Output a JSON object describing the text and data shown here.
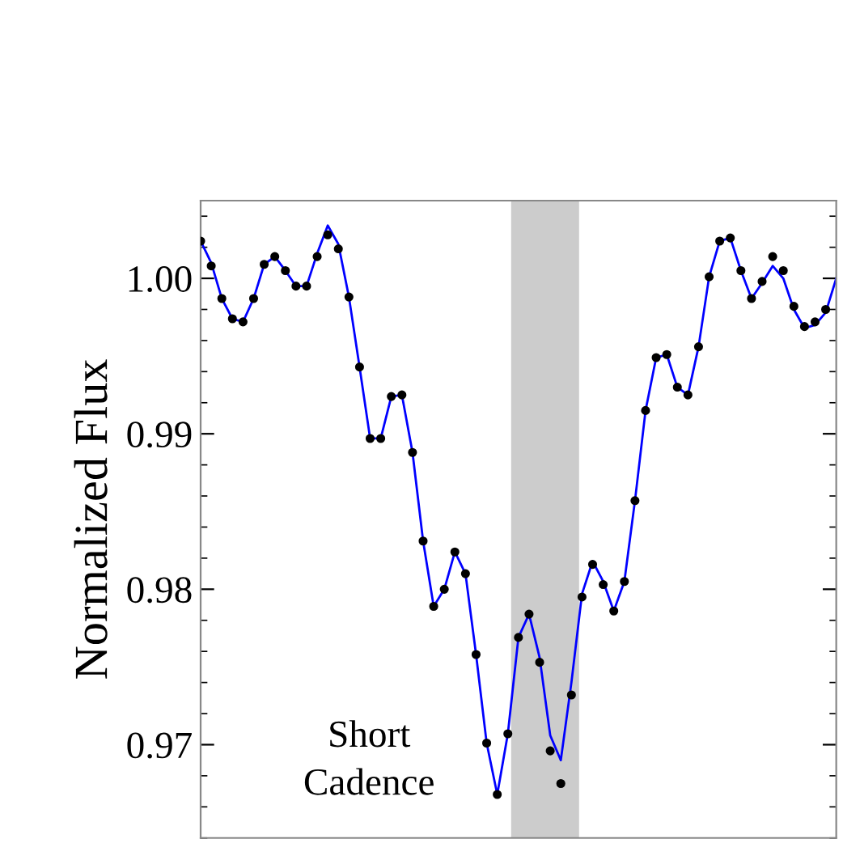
{
  "chart_data": {
    "type": "scatter",
    "ylabel": "Normalized Flux",
    "categories": [
      null,
      null,
      null,
      null,
      null,
      null,
      null,
      null,
      null,
      null,
      null,
      null,
      null,
      null,
      null,
      null,
      null,
      null,
      null,
      null,
      null,
      null,
      null,
      null,
      null,
      null,
      null,
      null,
      null,
      null,
      null,
      null,
      null,
      null,
      null,
      null,
      null,
      null,
      null,
      null,
      null,
      null,
      null,
      null,
      null,
      null,
      null,
      null,
      null,
      null,
      null,
      null,
      null,
      null,
      null,
      null,
      null,
      null,
      null,
      null,
      null
    ],
    "series": [
      {
        "type": "line",
        "color": "#0000ff",
        "marker": "none",
        "values": [
          1.0024,
          1.001,
          0.9987,
          0.9974,
          0.9972,
          0.9987,
          1.0009,
          1.0014,
          1.0005,
          0.9995,
          0.9995,
          1.0016,
          1.0034,
          1.0022,
          0.9988,
          0.9943,
          0.9897,
          0.9897,
          0.9924,
          0.9925,
          0.9888,
          0.9831,
          0.9789,
          0.98,
          0.9824,
          0.981,
          0.9758,
          0.9701,
          0.9668,
          0.9707,
          0.9769,
          0.9784,
          0.9756,
          0.9706,
          0.969,
          0.974,
          0.9797,
          0.9818,
          0.9805,
          0.9786,
          0.9805,
          0.9857,
          0.9915,
          0.9949,
          0.9951,
          0.993,
          0.9925,
          0.9956,
          1.0001,
          1.0024,
          1.0026,
          1.0005,
          0.9987,
          0.9997,
          1.0008,
          1.0,
          0.998,
          0.9968,
          0.997,
          0.9978,
          1.0
        ]
      },
      {
        "color": "#000000",
        "marker": "circle",
        "values": [
          1.0024,
          1.0008,
          0.9987,
          0.9974,
          0.9972,
          0.9987,
          1.0009,
          1.0014,
          1.0005,
          0.9995,
          0.9995,
          1.0014,
          1.0028,
          1.0019,
          0.9988,
          0.9943,
          0.9897,
          0.9897,
          0.9924,
          0.9925,
          0.9888,
          0.9831,
          0.9789,
          0.98,
          0.9824,
          0.981,
          0.9758,
          0.9701,
          0.9668,
          0.9707,
          0.9769,
          0.9784,
          0.9753,
          0.9696,
          0.9675,
          0.9732,
          0.9795,
          0.9816,
          0.9803,
          0.9786,
          0.9805,
          0.9857,
          0.9915,
          0.9949,
          0.9951,
          0.993,
          0.9925,
          0.9956,
          1.0001,
          1.0024,
          1.0026,
          1.0005,
          0.9987,
          0.9998,
          1.0014,
          1.0005,
          0.9982,
          0.9969,
          0.9972,
          0.998,
          null
        ]
      }
    ],
    "ylim": [
      0.964,
      1.005
    ],
    "yticks": [
      0.97,
      0.98,
      0.99,
      {
        "value": 1.0,
        "label": "1.00"
      }
    ],
    "annotations": [
      "Short\nCadence"
    ],
    "tick_labels": "y",
    "grid": false,
    "legend": false
  }
}
